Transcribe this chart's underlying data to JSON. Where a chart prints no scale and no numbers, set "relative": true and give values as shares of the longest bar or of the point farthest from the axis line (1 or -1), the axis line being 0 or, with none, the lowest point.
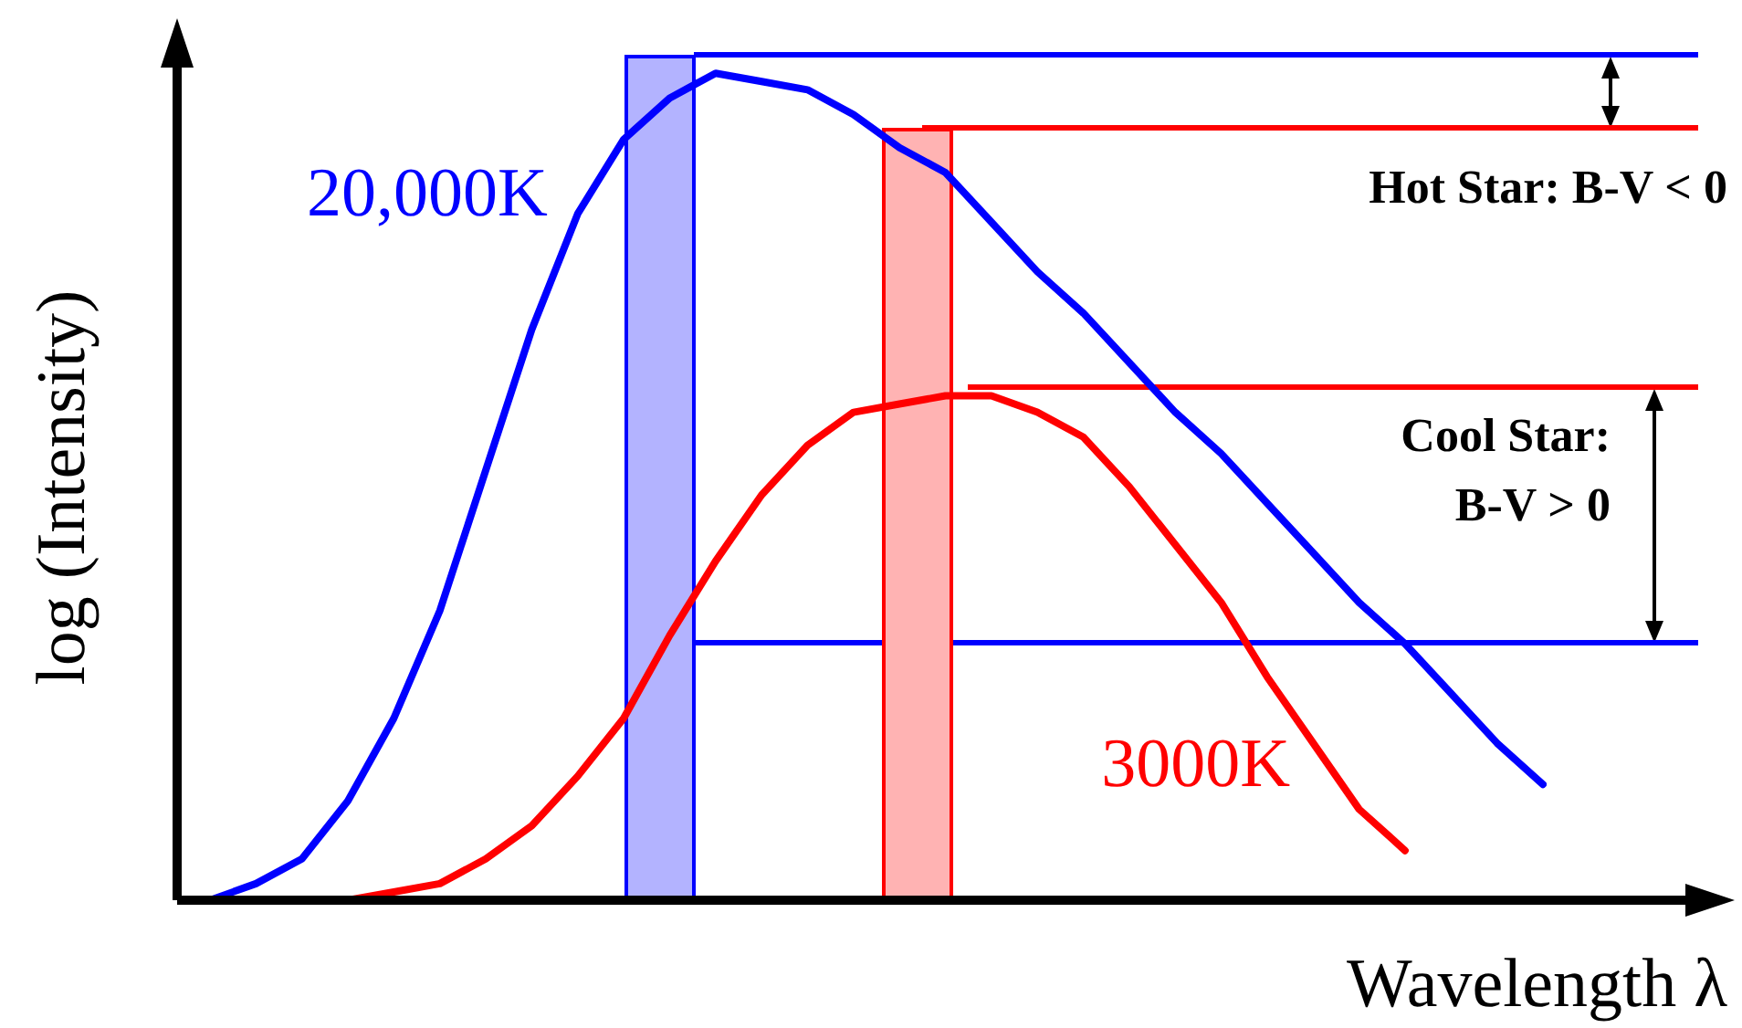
{
  "chart_data": {
    "type": "line",
    "relative": true,
    "xlabel": "Wavelength λ",
    "ylabel": "log (Intensity)",
    "legend": false,
    "marker": "none",
    "line_style": "solid",
    "categories": [
      null,
      null,
      null,
      null,
      null,
      null,
      null,
      null,
      null,
      null,
      null,
      null,
      null,
      null,
      null,
      null,
      null,
      null,
      null,
      null,
      null,
      null,
      null,
      null,
      null,
      null,
      null,
      null,
      null,
      null
    ],
    "series": [
      {
        "name": "20,000K",
        "color": "#0000ff",
        "values": [
          0,
          0.02,
          0.05,
          0.12,
          0.22,
          0.35,
          0.52,
          0.69,
          0.83,
          0.92,
          0.97,
          1,
          0.99,
          0.98,
          0.95,
          0.91,
          0.88,
          0.82,
          0.76,
          0.71,
          0.65,
          0.59,
          0.54,
          0.48,
          0.42,
          0.36,
          0.31,
          0.25,
          0.19,
          0.14
        ]
      },
      {
        "name": "3000K",
        "color": "#ff0000",
        "values": [
          null,
          null,
          null,
          0,
          0.01,
          0.02,
          0.05,
          0.09,
          0.15,
          0.22,
          0.32,
          0.41,
          0.49,
          0.55,
          0.59,
          0.6,
          0.61,
          0.61,
          0.59,
          0.56,
          0.5,
          0.43,
          0.36,
          0.27,
          0.19,
          0.11,
          0.06,
          null,
          null,
          null
        ]
      }
    ],
    "annotations": [
      "Hot Star: B-V < 0",
      "Cool Star:",
      "B-V > 0"
    ]
  }
}
